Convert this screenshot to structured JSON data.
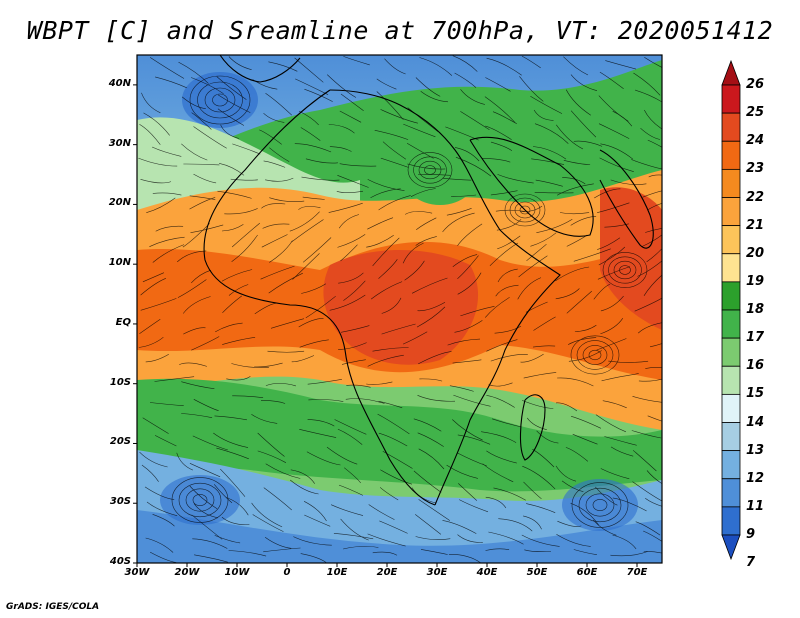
{
  "title": "WBPT [C] and Sreamline at 700hPa, VT: 2020051412",
  "credit": "GrADS: IGES/COLA",
  "lat_labels": [
    "40N",
    "30N",
    "20N",
    "10N",
    "EQ",
    "10S",
    "20S",
    "30S",
    "40S"
  ],
  "lat_values": [
    40,
    30,
    20,
    10,
    0,
    -10,
    -20,
    -30,
    -40
  ],
  "lon_labels": [
    "30W",
    "20W",
    "10W",
    "0",
    "10E",
    "20E",
    "30E",
    "40E",
    "50E",
    "60E",
    "70E"
  ],
  "lon_values": [
    -30,
    -20,
    -10,
    0,
    10,
    20,
    30,
    40,
    50,
    60,
    70
  ],
  "domain": {
    "lon_min": -30,
    "lon_max": 75,
    "lat_min": -40,
    "lat_max": 45
  },
  "colorbar": {
    "labels": [
      "26",
      "25",
      "24",
      "23",
      "22",
      "21",
      "20",
      "19",
      "18",
      "17",
      "16",
      "15",
      "14",
      "13",
      "12",
      "11",
      "9",
      "7"
    ],
    "colors": [
      "#a50f15",
      "#cb181d",
      "#e34a1f",
      "#f16913",
      "#f58a1f",
      "#fba33c",
      "#fdc45a",
      "#fee391",
      "#2ca02c",
      "#41b34a",
      "#7ccb70",
      "#b7e4b0",
      "#e0f3f8",
      "#a6cee3",
      "#74b0e0",
      "#4f8fd8",
      "#2f6fcf",
      "#1c4fc0"
    ]
  }
}
